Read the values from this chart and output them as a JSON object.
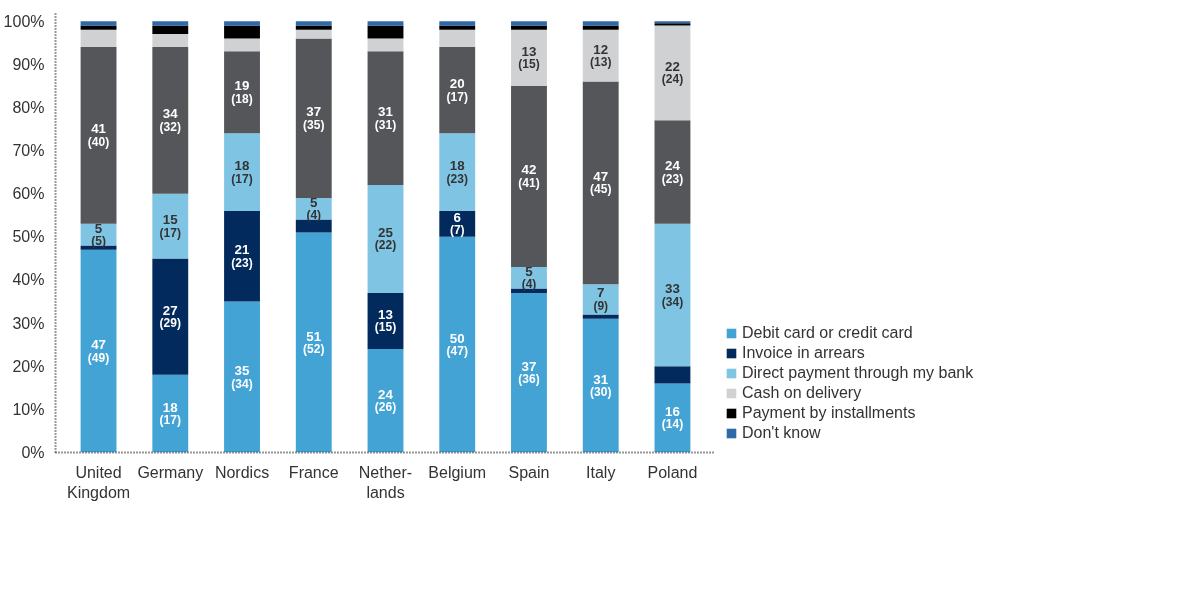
{
  "chart_data": {
    "type": "bar",
    "stacked": true,
    "categories": [
      "United\nKingdom",
      "Germany",
      "Nordics",
      "France",
      "Nether-\nlands",
      "Belgium",
      "Spain",
      "Italy",
      "Poland"
    ],
    "ylim": [
      0,
      102
    ],
    "yticks": [
      {
        "value": 0,
        "label": "0%"
      },
      {
        "value": 10,
        "label": "10%"
      },
      {
        "value": 20,
        "label": "20%"
      },
      {
        "value": 30,
        "label": "30%"
      },
      {
        "value": 40,
        "label": "40%"
      },
      {
        "value": 50,
        "label": "50%"
      },
      {
        "value": 60,
        "label": "60%"
      },
      {
        "value": 70,
        "label": "70%"
      },
      {
        "value": 80,
        "label": "80%"
      },
      {
        "value": 90,
        "label": "90%"
      },
      {
        "value": 100,
        "label": "100%"
      }
    ],
    "grid": false,
    "legend": "bottom right",
    "series": [
      {
        "name": "Debit card or credit card",
        "color": "#42a3d4",
        "values": [
          47,
          18,
          35,
          51,
          24,
          50,
          37,
          31,
          16
        ],
        "value_labels": [
          "47\n(49)",
          "18\n(17)",
          "35\n(34)",
          "51\n(52)",
          "24\n(26)",
          "50\n(47)",
          "37\n(36)",
          "31\n(30)",
          "16\n(14)"
        ]
      },
      {
        "name": "Invoice in arrears",
        "color": "#032a5c",
        "values": [
          1,
          27,
          21,
          3,
          13,
          6,
          1,
          1,
          4
        ],
        "value_labels": [
          null,
          "27\n(29)",
          "21\n(23)",
          null,
          "13\n(15)",
          "6\n(7)",
          null,
          null,
          null
        ]
      },
      {
        "name": "Direct payment through my bank",
        "color": "#7fc4e3",
        "values": [
          5,
          15,
          18,
          5,
          25,
          18,
          5,
          7,
          33
        ],
        "value_labels": [
          "5\n(5)",
          "15\n(17)",
          "18\n(17)",
          "5\n(4)",
          "25\n(22)",
          "18\n(23)",
          "5\n(4)",
          "7\n(9)",
          "33\n(34)"
        ]
      },
      {
        "color": "#555659",
        "values": [
          41,
          34,
          19,
          37,
          31,
          20,
          42,
          47,
          24
        ],
        "value_labels": [
          "41\n(40)",
          "34\n(32)",
          "19\n(18)",
          "37\n(35)",
          "31\n(31)",
          "20\n(17)",
          "42\n(41)",
          "47\n(45)",
          "24\n(23)"
        ]
      },
      {
        "name": "Cash on delivery",
        "color": "#d0d1d3",
        "values": [
          4,
          3,
          3,
          2,
          3,
          4,
          13,
          12,
          22
        ],
        "value_labels": [
          null,
          null,
          null,
          null,
          null,
          null,
          "13\n(15)",
          "12\n(13)",
          "22\n(24)"
        ]
      },
      {
        "name": "Payment by installments",
        "color": "#000000",
        "values": [
          1,
          2,
          3,
          1,
          3,
          1,
          1,
          1,
          0.5
        ]
      },
      {
        "name": "Don't know",
        "color": "#2f6aa8",
        "values": [
          1,
          1,
          1,
          1,
          1,
          1,
          1,
          1,
          0.5
        ]
      }
    ]
  }
}
